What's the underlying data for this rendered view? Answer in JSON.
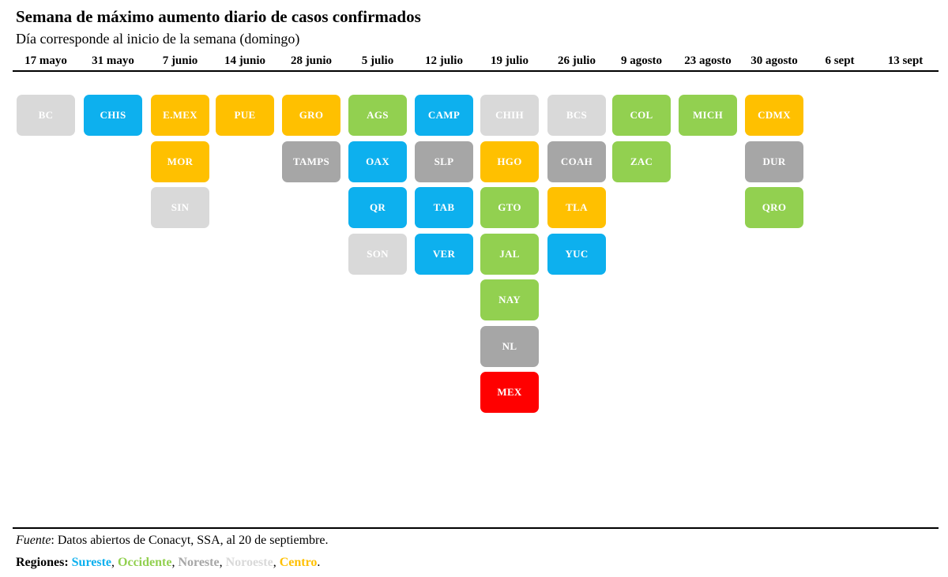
{
  "title": "Semana de máximo aumento diario de casos confirmados",
  "subtitle": "Día corresponde al inicio de la semana (domingo)",
  "colors": {
    "Sureste": "#0db0ee",
    "Occidente": "#92d050",
    "Noreste": "#a6a6a6",
    "Noroeste": "#d9d9d9",
    "Centro": "#ffc000",
    "Nacional": "#ff0000"
  },
  "chart_data": {
    "type": "table",
    "weeks": [
      "17 mayo",
      "31 mayo",
      "7 junio",
      "14 junio",
      "28 junio",
      "5 julio",
      "12 julio",
      "19 julio",
      "26 julio",
      "9 agosto",
      "23 agosto",
      "30 agosto",
      "6 sept",
      "13 sept"
    ],
    "columns": [
      {
        "week": "17 mayo",
        "states": [
          {
            "label": "BC",
            "region": "Noroeste"
          }
        ]
      },
      {
        "week": "31 mayo",
        "states": [
          {
            "label": "CHIS",
            "region": "Sureste"
          }
        ]
      },
      {
        "week": "7 junio",
        "states": [
          {
            "label": "E.MEX",
            "region": "Centro"
          },
          {
            "label": "MOR",
            "region": "Centro"
          },
          {
            "label": "SIN",
            "region": "Noroeste"
          }
        ]
      },
      {
        "week": "14 junio",
        "states": [
          {
            "label": "PUE",
            "region": "Centro"
          }
        ]
      },
      {
        "week": "28 junio",
        "states": [
          {
            "label": "GRO",
            "region": "Centro"
          },
          {
            "label": "TAMPS",
            "region": "Noreste"
          }
        ]
      },
      {
        "week": "5 julio",
        "states": [
          {
            "label": "AGS",
            "region": "Occidente"
          },
          {
            "label": "OAX",
            "region": "Sureste"
          },
          {
            "label": "QR",
            "region": "Sureste"
          },
          {
            "label": "SON",
            "region": "Noroeste"
          }
        ]
      },
      {
        "week": "12 julio",
        "states": [
          {
            "label": "CAMP",
            "region": "Sureste"
          },
          {
            "label": "SLP",
            "region": "Noreste"
          },
          {
            "label": "TAB",
            "region": "Sureste"
          },
          {
            "label": "VER",
            "region": "Sureste"
          }
        ]
      },
      {
        "week": "19 julio",
        "states": [
          {
            "label": "CHIH",
            "region": "Noroeste"
          },
          {
            "label": "HGO",
            "region": "Centro"
          },
          {
            "label": "GTO",
            "region": "Occidente"
          },
          {
            "label": "JAL",
            "region": "Occidente"
          },
          {
            "label": "NAY",
            "region": "Occidente"
          },
          {
            "label": "NL",
            "region": "Noreste"
          },
          {
            "label": "MEX",
            "region": "Nacional"
          }
        ]
      },
      {
        "week": "26 julio",
        "states": [
          {
            "label": "BCS",
            "region": "Noroeste"
          },
          {
            "label": "COAH",
            "region": "Noreste"
          },
          {
            "label": "TLA",
            "region": "Centro"
          },
          {
            "label": "YUC",
            "region": "Sureste"
          }
        ]
      },
      {
        "week": "9 agosto",
        "states": [
          {
            "label": "COL",
            "region": "Occidente"
          },
          {
            "label": "ZAC",
            "region": "Occidente"
          }
        ]
      },
      {
        "week": "23 agosto",
        "states": [
          {
            "label": "MICH",
            "region": "Occidente"
          }
        ]
      },
      {
        "week": "30 agosto",
        "states": [
          {
            "label": "CDMX",
            "region": "Centro"
          },
          {
            "label": "DUR",
            "region": "Noreste"
          },
          {
            "label": "QRO",
            "region": "Occidente"
          }
        ]
      },
      {
        "week": "6 sept",
        "states": []
      },
      {
        "week": "13 sept",
        "states": []
      }
    ]
  },
  "source": {
    "label": "Fuente",
    "text": ": Datos abiertos de Conacyt, SSA, al 20 de septiembre."
  },
  "legend": {
    "label": "Regiones:",
    "items": [
      {
        "name": "Sureste",
        "region": "Sureste",
        "sep": ", "
      },
      {
        "name": "Occidente",
        "region": "Occidente",
        "sep": ", "
      },
      {
        "name": "Noreste",
        "region": "Noreste",
        "sep": ", "
      },
      {
        "name": "Noroeste",
        "region": "Noroeste",
        "sep": ", "
      },
      {
        "name": "Centro",
        "region": "Centro",
        "sep": "."
      }
    ]
  }
}
